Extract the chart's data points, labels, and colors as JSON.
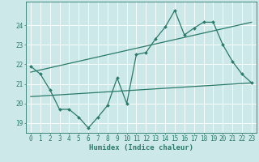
{
  "title": "",
  "xlabel": "Humidex (Indice chaleur)",
  "bg_color": "#cce8e8",
  "grid_color": "#ffffff",
  "line_color": "#2a7a6a",
  "xlim": [
    -0.5,
    23.5
  ],
  "ylim": [
    18.5,
    25.2
  ],
  "yticks": [
    19,
    20,
    21,
    22,
    23,
    24
  ],
  "xticks": [
    0,
    1,
    2,
    3,
    4,
    5,
    6,
    7,
    8,
    9,
    10,
    11,
    12,
    13,
    14,
    15,
    16,
    17,
    18,
    19,
    20,
    21,
    22,
    23
  ],
  "line1_x": [
    0,
    1,
    2,
    3,
    4,
    5,
    6,
    7,
    8,
    9,
    10,
    11,
    12,
    13,
    14,
    15,
    16,
    17,
    18,
    19,
    20,
    21,
    22,
    23
  ],
  "line1_y": [
    21.9,
    21.5,
    20.7,
    19.7,
    19.7,
    19.3,
    18.75,
    19.3,
    19.9,
    21.3,
    20.0,
    22.5,
    22.6,
    23.3,
    23.9,
    24.75,
    23.5,
    23.85,
    24.15,
    24.15,
    23.0,
    22.15,
    21.5,
    21.05
  ],
  "line2_x": [
    0,
    23
  ],
  "line2_y": [
    21.6,
    24.15
  ],
  "line3_x": [
    0,
    23
  ],
  "line3_y": [
    20.35,
    21.05
  ],
  "figsize": [
    3.2,
    2.0
  ],
  "dpi": 100
}
